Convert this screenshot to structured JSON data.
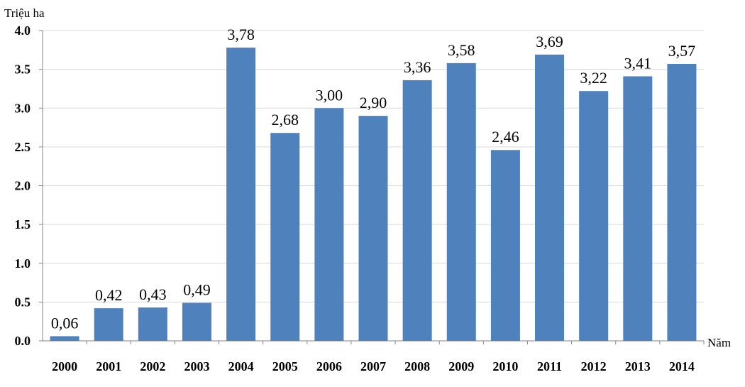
{
  "chart_data": {
    "type": "bar",
    "ylabel": "Triệu ha",
    "xlabel": "Năm",
    "categories": [
      "2000",
      "2001",
      "2002",
      "2003",
      "2004",
      "2005",
      "2006",
      "2007",
      "2008",
      "2009",
      "2010",
      "2011",
      "2012",
      "2013",
      "2014"
    ],
    "values": [
      0.06,
      0.42,
      0.43,
      0.49,
      3.78,
      2.68,
      3.0,
      2.9,
      3.36,
      3.58,
      2.46,
      3.69,
      3.22,
      3.41,
      3.57
    ],
    "data_labels": [
      "0,06",
      "0,42",
      "0,43",
      "0,49",
      "3,78",
      "2,68",
      "3,00",
      "2,90",
      "3,36",
      "3,58",
      "2,46",
      "3,69",
      "3,22",
      "3,41",
      "3,57"
    ],
    "y_ticks": [
      "0.0",
      "0.5",
      "1.0",
      "1.5",
      "2.0",
      "2.5",
      "3.0",
      "3.5",
      "4.0"
    ],
    "ylim": [
      0,
      4.0
    ],
    "grid": true,
    "bar_color": "#4f81bd"
  }
}
